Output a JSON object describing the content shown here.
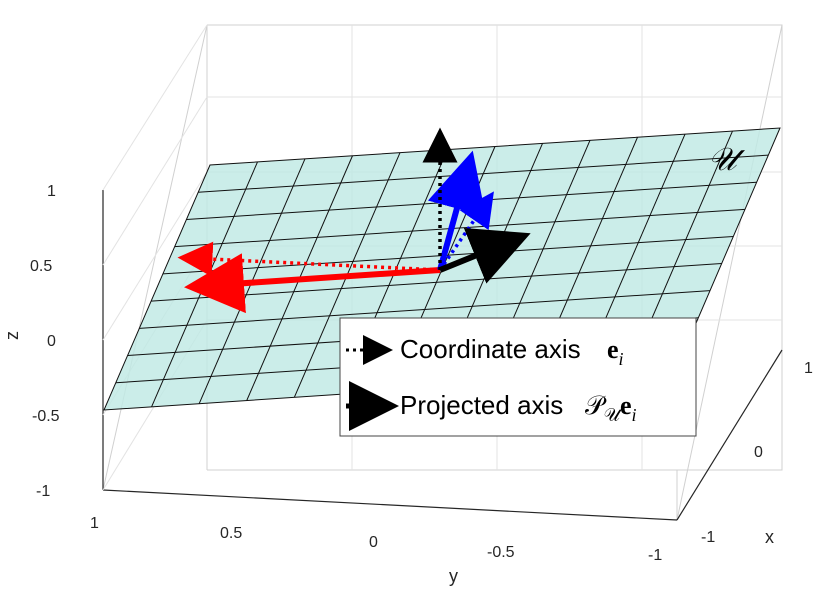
{
  "chart_data": {
    "type": "3d-vector-plot",
    "plane": {
      "label": "𝒰",
      "color": "#bfe9e4",
      "grid_color": "#111111"
    },
    "axes": {
      "x": {
        "label": "x",
        "range": [
          -1,
          1
        ],
        "ticks": [
          "1",
          "0",
          "-1"
        ]
      },
      "y": {
        "label": "y",
        "range": [
          -1,
          1
        ],
        "ticks": [
          "1",
          "0.5",
          "0",
          "-0.5",
          "-1"
        ]
      },
      "z": {
        "label": "z",
        "range": [
          -1,
          1
        ],
        "ticks": [
          "1",
          "0.5",
          "0",
          "-0.5",
          "-1"
        ]
      }
    },
    "legend": {
      "entries": [
        {
          "style": "dotted-arrow",
          "text": "Coordinate axis ",
          "math": "e",
          "math_sub": "i"
        },
        {
          "style": "solid-arrow",
          "text": "Projected axis ",
          "math": "𝒫",
          "math_sub": "𝒰",
          "math_tail": "e",
          "math_tail_sub": "i"
        }
      ]
    },
    "series": [
      {
        "color": "#ff0000"
      },
      {
        "color": "#0000ff"
      },
      {
        "color": "#000000"
      }
    ]
  }
}
